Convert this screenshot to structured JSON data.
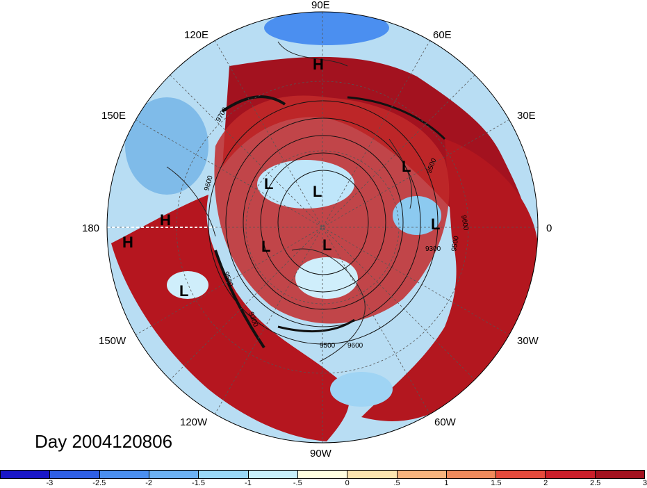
{
  "map": {
    "projection": "north-polar-stereographic",
    "longitude_labels": [
      "90E",
      "60E",
      "120E",
      "150E",
      "30E",
      "180",
      "0",
      "150W",
      "30W",
      "120W",
      "60W",
      "90W"
    ],
    "pressure_systems": [
      {
        "type": "H",
        "label": "H"
      },
      {
        "type": "H",
        "label": "H"
      },
      {
        "type": "H",
        "label": "H"
      },
      {
        "type": "L",
        "label": "L"
      },
      {
        "type": "L",
        "label": "L"
      },
      {
        "type": "L",
        "label": "L"
      },
      {
        "type": "L",
        "label": "L"
      },
      {
        "type": "L",
        "label": "L"
      },
      {
        "type": "L",
        "label": "L"
      },
      {
        "type": "L",
        "label": "L"
      }
    ],
    "contour_labels": [
      "9700",
      "9600",
      "9500",
      "9500",
      "9600",
      "9300",
      "9500",
      "9500",
      "9600",
      "9300"
    ]
  },
  "date_label": "Day 2004120806",
  "colorbar": {
    "colors": [
      "#1a17c8",
      "#2f5fe6",
      "#4b8ff0",
      "#6db2f3",
      "#9ad9f7",
      "#c8f0fb",
      "#ffffe0",
      "#fde6b0",
      "#f7b47e",
      "#f08a5c",
      "#e64a3c",
      "#cc1f2a",
      "#a3121f"
    ],
    "ticks": [
      "-3",
      "-2.5",
      "-2",
      "-1.5",
      "-1",
      "-.5",
      "0",
      ".5",
      "1",
      "1.5",
      "2",
      "2.5",
      "3"
    ]
  }
}
